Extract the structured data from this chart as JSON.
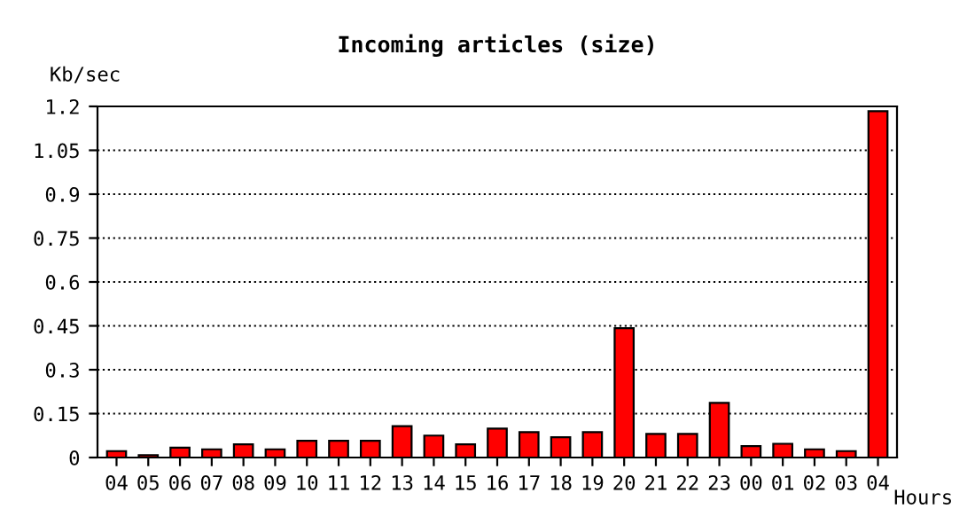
{
  "chart_data": {
    "type": "bar",
    "title": "Incoming articles (size)",
    "xlabel": "Hours",
    "ylabel": "Kb/sec",
    "categories": [
      "04",
      "05",
      "06",
      "07",
      "08",
      "09",
      "10",
      "11",
      "12",
      "13",
      "14",
      "15",
      "16",
      "17",
      "18",
      "19",
      "20",
      "21",
      "22",
      "23",
      "00",
      "01",
      "02",
      "03",
      "04"
    ],
    "values": [
      0.022,
      0.008,
      0.034,
      0.028,
      0.045,
      0.028,
      0.057,
      0.057,
      0.057,
      0.107,
      0.075,
      0.045,
      0.099,
      0.087,
      0.069,
      0.087,
      0.442,
      0.081,
      0.081,
      0.187,
      0.039,
      0.047,
      0.028,
      0.022,
      1.184
    ],
    "color": "#ff0000",
    "ylim": [
      0,
      1.2
    ],
    "yticks": [
      0,
      0.15,
      0.3,
      0.45,
      0.6,
      0.75,
      0.9,
      1.05,
      1.2
    ],
    "grid": "y",
    "line_style": "dotted"
  }
}
